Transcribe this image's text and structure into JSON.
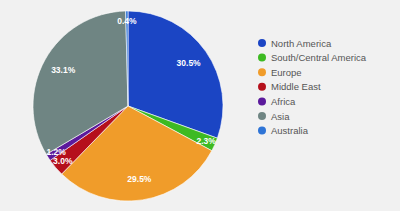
{
  "chart_data": {
    "type": "pie",
    "categories": [
      "North America",
      "South/Central America",
      "Europe",
      "Middle East",
      "Africa",
      "Asia",
      "Australia"
    ],
    "values": [
      30.5,
      2.3,
      29.5,
      3.0,
      1.2,
      33.1,
      0.4
    ],
    "value_labels": [
      "30.5%",
      "2.3%",
      "29.5%",
      "3.0%",
      "1.2%",
      "33.1%",
      "0.4%"
    ],
    "colors": [
      "#1b45c4",
      "#3dba22",
      "#f09c2a",
      "#b5101c",
      "#5b1a9c",
      "#6f8583",
      "#2e74d6"
    ],
    "data_labels": true,
    "legend": "right"
  }
}
